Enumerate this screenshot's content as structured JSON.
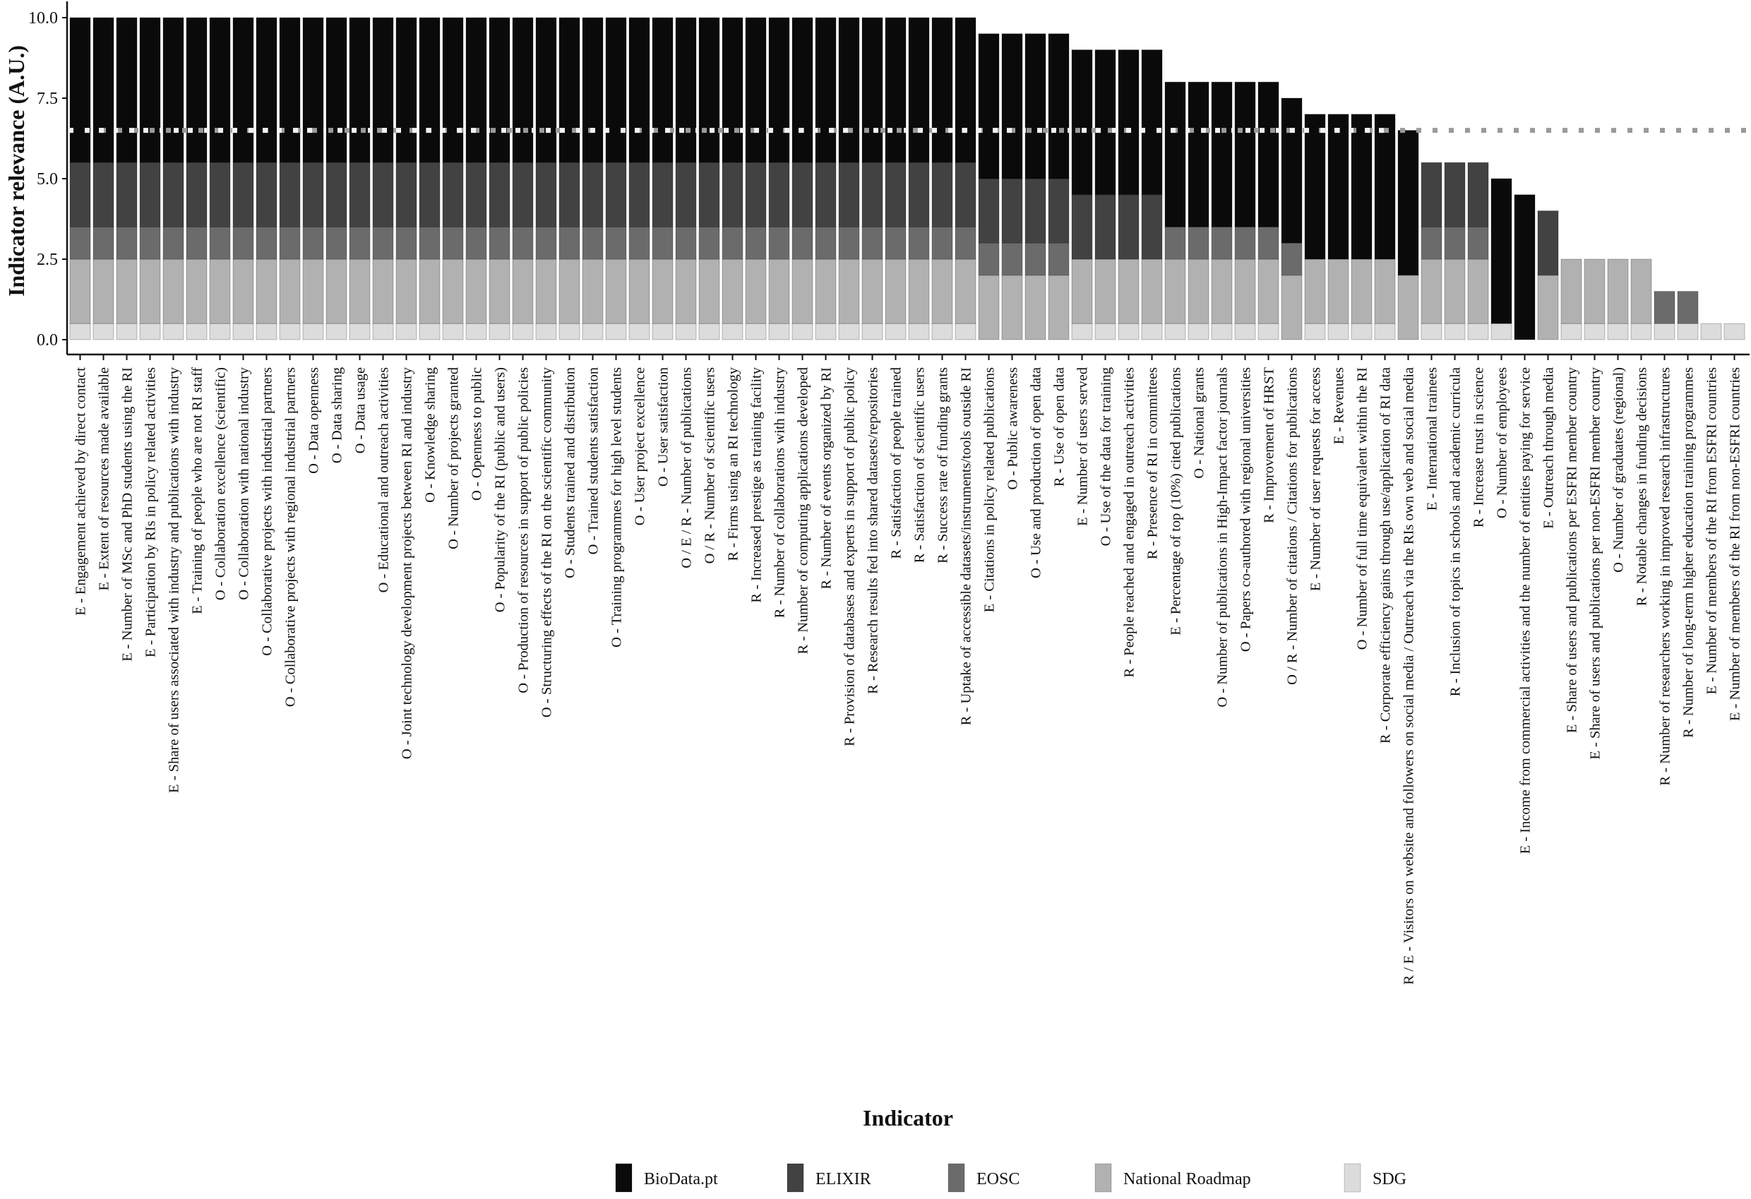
{
  "chart_data": {
    "type": "bar",
    "stacked": true,
    "title": "",
    "xlabel": "Indicator",
    "ylabel": "Indicator relevance (A.U.)",
    "ylim": [
      0,
      10
    ],
    "yticks": [
      "0.0",
      "2.5",
      "5.0",
      "7.5",
      "10.0"
    ],
    "grid": false,
    "legend_position": "bottom",
    "reference_line": {
      "y": 6.5,
      "style": "dotted"
    },
    "series": [
      {
        "name": "BioData.pt",
        "color": "#0a0a0a"
      },
      {
        "name": "ELIXIR",
        "color": "#424242"
      },
      {
        "name": "EOSC",
        "color": "#6b6b6b"
      },
      {
        "name": "National Roadmap",
        "color": "#b1b1b1"
      },
      {
        "name": "SDG",
        "color": "#dcdcdc"
      }
    ],
    "values_order": [
      "BioData.pt",
      "ELIXIR",
      "EOSC",
      "National Roadmap",
      "SDG"
    ],
    "categories": [
      {
        "label": "E - Engagement achieved by direct contact",
        "values": [
          4.5,
          2,
          1,
          2,
          0.5
        ]
      },
      {
        "label": "E - Extent of resources made available",
        "values": [
          4.5,
          2,
          1,
          2,
          0.5
        ]
      },
      {
        "label": "E - Number of MSc and PhD students using the RI",
        "values": [
          4.5,
          2,
          1,
          2,
          0.5
        ]
      },
      {
        "label": "E - Participation by RIs in policy related activities",
        "values": [
          4.5,
          2,
          1,
          2,
          0.5
        ]
      },
      {
        "label": "E - Share of users associated with industry and publications with industry",
        "values": [
          4.5,
          2,
          1,
          2,
          0.5
        ]
      },
      {
        "label": "E - Training of people who are not RI staff",
        "values": [
          4.5,
          2,
          1,
          2,
          0.5
        ]
      },
      {
        "label": "O - Collaboration excellence (scientific)",
        "values": [
          4.5,
          2,
          1,
          2,
          0.5
        ]
      },
      {
        "label": "O - Collaboration with national industry",
        "values": [
          4.5,
          2,
          1,
          2,
          0.5
        ]
      },
      {
        "label": "O - Collaborative projects with industrial partners",
        "values": [
          4.5,
          2,
          1,
          2,
          0.5
        ]
      },
      {
        "label": "O - Collaborative projects with regional industrial partners",
        "values": [
          4.5,
          2,
          1,
          2,
          0.5
        ]
      },
      {
        "label": "O - Data openness",
        "values": [
          4.5,
          2,
          1,
          2,
          0.5
        ]
      },
      {
        "label": "O - Data sharing",
        "values": [
          4.5,
          2,
          1,
          2,
          0.5
        ]
      },
      {
        "label": "O - Data usage",
        "values": [
          4.5,
          2,
          1,
          2,
          0.5
        ]
      },
      {
        "label": "O - Educational and outreach activities",
        "values": [
          4.5,
          2,
          1,
          2,
          0.5
        ]
      },
      {
        "label": "O - Joint technology development projects between RI and industry",
        "values": [
          4.5,
          2,
          1,
          2,
          0.5
        ]
      },
      {
        "label": "O - Knowledge sharing",
        "values": [
          4.5,
          2,
          1,
          2,
          0.5
        ]
      },
      {
        "label": "O - Number of projects granted",
        "values": [
          4.5,
          2,
          1,
          2,
          0.5
        ]
      },
      {
        "label": "O - Openness to public",
        "values": [
          4.5,
          2,
          1,
          2,
          0.5
        ]
      },
      {
        "label": "O - Popularity of the RI (public and users)",
        "values": [
          4.5,
          2,
          1,
          2,
          0.5
        ]
      },
      {
        "label": "O - Production of resources in support of public policies",
        "values": [
          4.5,
          2,
          1,
          2,
          0.5
        ]
      },
      {
        "label": "O - Structuring effects of the RI on the scientific community",
        "values": [
          4.5,
          2,
          1,
          2,
          0.5
        ]
      },
      {
        "label": "O - Students trained and distribution",
        "values": [
          4.5,
          2,
          1,
          2,
          0.5
        ]
      },
      {
        "label": "O - Trained students satisfaction",
        "values": [
          4.5,
          2,
          1,
          2,
          0.5
        ]
      },
      {
        "label": "O - Training programmes for high level students",
        "values": [
          4.5,
          2,
          1,
          2,
          0.5
        ]
      },
      {
        "label": "O - User project excellence",
        "values": [
          4.5,
          2,
          1,
          2,
          0.5
        ]
      },
      {
        "label": "O - User satisfaction",
        "values": [
          4.5,
          2,
          1,
          2,
          0.5
        ]
      },
      {
        "label": "O / E / R - Number of publications",
        "values": [
          4.5,
          2,
          1,
          2,
          0.5
        ]
      },
      {
        "label": "O / R - Number of scientific users",
        "values": [
          4.5,
          2,
          1,
          2,
          0.5
        ]
      },
      {
        "label": "R - Firms using an RI technology",
        "values": [
          4.5,
          2,
          1,
          2,
          0.5
        ]
      },
      {
        "label": "R - Increased prestige as training facility",
        "values": [
          4.5,
          2,
          1,
          2,
          0.5
        ]
      },
      {
        "label": "R - Number of collaborations with industry",
        "values": [
          4.5,
          2,
          1,
          2,
          0.5
        ]
      },
      {
        "label": "R - Number of computing applications developed",
        "values": [
          4.5,
          2,
          1,
          2,
          0.5
        ]
      },
      {
        "label": "R - Number of events organized by RI",
        "values": [
          4.5,
          2,
          1,
          2,
          0.5
        ]
      },
      {
        "label": "R - Provision of databases and experts in support of public policy",
        "values": [
          4.5,
          2,
          1,
          2,
          0.5
        ]
      },
      {
        "label": "R - Research results fed into shared datasets/repositories",
        "values": [
          4.5,
          2,
          1,
          2,
          0.5
        ]
      },
      {
        "label": "R - Satisfaction of people trained",
        "values": [
          4.5,
          2,
          1,
          2,
          0.5
        ]
      },
      {
        "label": "R - Satisfaction of scientific users",
        "values": [
          4.5,
          2,
          1,
          2,
          0.5
        ]
      },
      {
        "label": "R - Success rate of funding grants",
        "values": [
          4.5,
          2,
          1,
          2,
          0.5
        ]
      },
      {
        "label": "R - Uptake of accessible datasets/instruments/tools outside RI",
        "values": [
          4.5,
          2,
          1,
          2,
          0.5
        ]
      },
      {
        "label": "E - Citations in policy related publications",
        "values": [
          4.5,
          2,
          1,
          2,
          0
        ]
      },
      {
        "label": "O - Public awareness",
        "values": [
          4.5,
          2,
          1,
          2,
          0
        ]
      },
      {
        "label": "O - Use and production of open data",
        "values": [
          4.5,
          2,
          1,
          2,
          0
        ]
      },
      {
        "label": "R - Use of open data",
        "values": [
          4.5,
          2,
          1,
          2,
          0
        ]
      },
      {
        "label": "E - Number of users served",
        "values": [
          4.5,
          2,
          0,
          2,
          0.5
        ]
      },
      {
        "label": "O - Use of the data for training",
        "values": [
          4.5,
          2,
          0,
          2,
          0.5
        ]
      },
      {
        "label": "R - People reached and engaged in outreach activities",
        "values": [
          4.5,
          2,
          0,
          2,
          0.5
        ]
      },
      {
        "label": "R - Presence of RI in committees",
        "values": [
          4.5,
          2,
          0,
          2,
          0.5
        ]
      },
      {
        "label": "E - Percentage of top (10%) cited publications",
        "values": [
          4.5,
          0,
          1,
          2,
          0.5
        ]
      },
      {
        "label": "O - National grants",
        "values": [
          4.5,
          0,
          1,
          2,
          0.5
        ]
      },
      {
        "label": "O - Number of publications in High-Impact factor journals",
        "values": [
          4.5,
          0,
          1,
          2,
          0.5
        ]
      },
      {
        "label": "O - Papers co-authored with regional universities",
        "values": [
          4.5,
          0,
          1,
          2,
          0.5
        ]
      },
      {
        "label": "R - Improvement of HRST",
        "values": [
          4.5,
          0,
          1,
          2,
          0.5
        ]
      },
      {
        "label": "O / R - Number of citations / Citations for publications",
        "values": [
          4.5,
          0,
          1,
          2,
          0
        ]
      },
      {
        "label": "E - Number of user requests for access",
        "values": [
          4.5,
          0,
          0,
          2,
          0.5
        ]
      },
      {
        "label": "E - Revenues",
        "values": [
          4.5,
          0,
          0,
          2,
          0.5
        ]
      },
      {
        "label": "O - Number of full time equivalent within the RI",
        "values": [
          4.5,
          0,
          0,
          2,
          0.5
        ]
      },
      {
        "label": "R - Corporate efficiency gains through use/application of RI data",
        "values": [
          4.5,
          0,
          0,
          2,
          0.5
        ]
      },
      {
        "label": "R / E - Visitors on website and followers on social media / Outreach via the RIs own web and social media",
        "values": [
          4.5,
          0,
          0,
          2,
          0
        ]
      },
      {
        "label": "E - International trainees",
        "values": [
          0,
          2,
          1,
          2,
          0.5
        ]
      },
      {
        "label": "R - Inclusion of topics in schools and academic curricula",
        "values": [
          0,
          2,
          1,
          2,
          0.5
        ]
      },
      {
        "label": "R - Increase trust in science",
        "values": [
          0,
          2,
          1,
          2,
          0.5
        ]
      },
      {
        "label": "O - Number of employees",
        "values": [
          4.5,
          0,
          0,
          0,
          0.5
        ]
      },
      {
        "label": "E - Income from commercial activities and the number of entities paying for service",
        "values": [
          4.5,
          0,
          0,
          0,
          0
        ]
      },
      {
        "label": "E - Outreach through media",
        "values": [
          0,
          2,
          0,
          2,
          0
        ]
      },
      {
        "label": "E - Share of users and publications per ESFRI member country",
        "values": [
          0,
          0,
          0,
          2,
          0.5
        ]
      },
      {
        "label": "E - Share of users and publications per non-ESFRI member country",
        "values": [
          0,
          0,
          0,
          2,
          0.5
        ]
      },
      {
        "label": "O - Number of graduates (regional)",
        "values": [
          0,
          0,
          0,
          2,
          0.5
        ]
      },
      {
        "label": "R - Notable changes in funding decisions",
        "values": [
          0,
          0,
          0,
          2,
          0.5
        ]
      },
      {
        "label": "R - Number of researchers working in improved research infrastructures",
        "values": [
          0,
          0,
          1,
          0,
          0.5
        ]
      },
      {
        "label": "R - Number of long-term higher education training programmes",
        "values": [
          0,
          0,
          1,
          0,
          0.5
        ]
      },
      {
        "label": "E - Number of members of the RI from ESFRI countries",
        "values": [
          0,
          0,
          0,
          0,
          0.5
        ]
      },
      {
        "label": "E - Number of members of the RI from non-ESFRI countries",
        "values": [
          0,
          0,
          0,
          0,
          0.5
        ]
      }
    ]
  }
}
